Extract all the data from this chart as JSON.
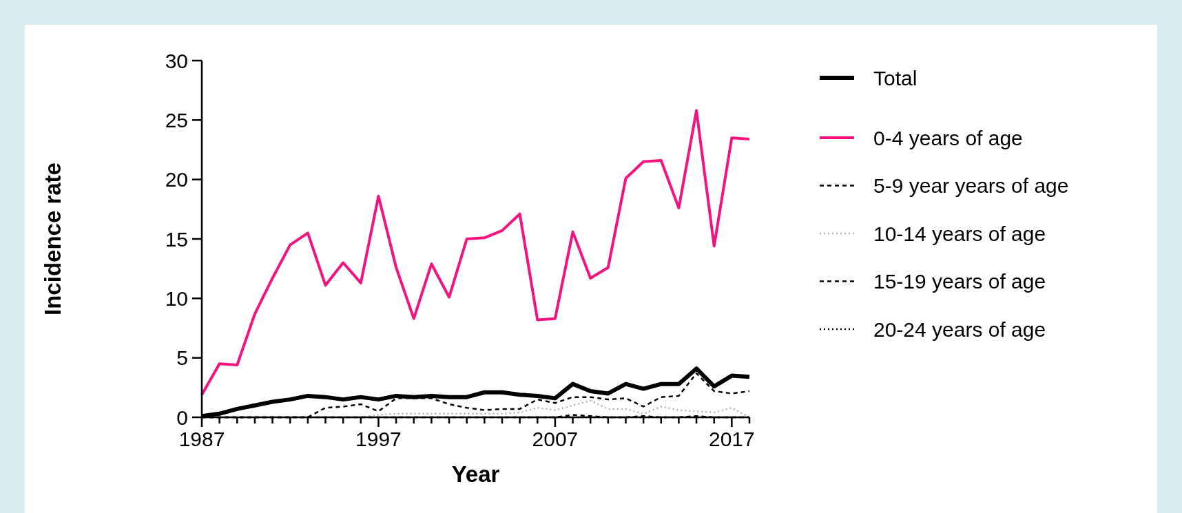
{
  "chart_data": {
    "type": "line",
    "xlabel": "Year",
    "ylabel": "Incidence rate",
    "x": [
      1987,
      1988,
      1989,
      1990,
      1991,
      1992,
      1993,
      1994,
      1995,
      1996,
      1997,
      1998,
      1999,
      2000,
      2001,
      2002,
      2003,
      2004,
      2005,
      2006,
      2007,
      2008,
      2009,
      2010,
      2011,
      2012,
      2013,
      2014,
      2015,
      2016,
      2017,
      2018
    ],
    "series": [
      {
        "name": "Total",
        "color": "#000000",
        "line_style": "solid",
        "values": [
          0.1,
          0.3,
          0.7,
          1.0,
          1.3,
          1.5,
          1.8,
          1.7,
          1.5,
          1.7,
          1.5,
          1.8,
          1.7,
          1.8,
          1.7,
          1.7,
          2.1,
          2.1,
          1.9,
          1.8,
          1.6,
          2.8,
          2.2,
          2.0,
          2.8,
          2.4,
          2.8,
          2.8,
          4.1,
          2.6,
          3.5,
          3.4
        ]
      },
      {
        "name": "0-4 years of age",
        "color": "#f5137f",
        "line_style": "solid",
        "values": [
          1.9,
          4.5,
          4.4,
          8.7,
          11.7,
          14.5,
          15.5,
          11.1,
          13.0,
          11.3,
          18.6,
          12.6,
          8.3,
          12.9,
          10.1,
          15.0,
          15.1,
          15.7,
          17.1,
          8.2,
          8.3,
          15.6,
          11.7,
          12.6,
          20.1,
          21.5,
          21.6,
          17.6,
          25.8,
          14.4,
          23.5,
          23.4
        ]
      },
      {
        "name": "5-9 year years of age",
        "color": "#000000",
        "line_style": "dashed",
        "values": [
          0,
          0,
          0,
          0,
          0,
          0,
          0,
          0.8,
          0.9,
          1.1,
          0.5,
          1.6,
          1.6,
          1.6,
          1.1,
          0.8,
          0.6,
          0.7,
          0.7,
          1.5,
          1.2,
          1.7,
          1.7,
          1.5,
          1.6,
          0.9,
          1.7,
          1.8,
          3.7,
          2.2,
          2.0,
          2.2
        ]
      },
      {
        "name": "10-14 years of age",
        "color": "#b0b0b0",
        "line_style": "dotted",
        "values": [
          null,
          null,
          null,
          null,
          null,
          null,
          null,
          null,
          null,
          0,
          0.2,
          0.3,
          0.3,
          0.3,
          0.3,
          0.3,
          0.3,
          0.3,
          0.4,
          0.8,
          0.6,
          1.0,
          1.4,
          0.7,
          0.7,
          0.3,
          0.9,
          0.6,
          0.5,
          0.4,
          0.8,
          0
        ]
      },
      {
        "name": "15-19 years of age",
        "color": "#000000",
        "line_style": "dashed",
        "values": [
          0,
          0,
          0,
          0,
          0,
          0,
          0,
          0,
          0,
          0,
          0,
          0,
          0,
          0,
          0,
          0,
          0,
          0,
          0,
          0,
          0,
          0.2,
          0.1,
          0,
          0,
          0.1,
          0,
          0,
          0.1,
          0,
          0,
          0
        ]
      },
      {
        "name": "20-24 years of age",
        "color": "#000000",
        "line_style": "dotted",
        "values": [
          null,
          null,
          null,
          null,
          null,
          null,
          null,
          null,
          null,
          null,
          null,
          null,
          null,
          null,
          null,
          null,
          null,
          null,
          0,
          0,
          0,
          0,
          0,
          0,
          0,
          0,
          0,
          0,
          0,
          0,
          0,
          0
        ]
      }
    ],
    "xlim": [
      1987,
      2018
    ],
    "ylim": [
      0,
      30
    ],
    "xticks": [
      1987,
      {
        "value": 1988,
        "label": null
      },
      {
        "value": 1989,
        "label": null
      },
      {
        "value": 1990,
        "label": null
      },
      {
        "value": 1991,
        "label": null
      },
      {
        "value": 1992,
        "label": null
      },
      {
        "value": 1993,
        "label": null
      },
      {
        "value": 1994,
        "label": null
      },
      {
        "value": 1995,
        "label": null
      },
      {
        "value": 1996,
        "label": null
      },
      1997,
      {
        "value": 1998,
        "label": null
      },
      {
        "value": 1999,
        "label": null
      },
      {
        "value": 2000,
        "label": null
      },
      {
        "value": 2001,
        "label": null
      },
      {
        "value": 2002,
        "label": null
      },
      {
        "value": 2003,
        "label": null
      },
      {
        "value": 2004,
        "label": null
      },
      {
        "value": 2005,
        "label": null
      },
      {
        "value": 2006,
        "label": null
      },
      2007,
      {
        "value": 2008,
        "label": null
      },
      {
        "value": 2009,
        "label": null
      },
      {
        "value": 2010,
        "label": null
      },
      {
        "value": 2011,
        "label": null
      },
      {
        "value": 2012,
        "label": null
      },
      {
        "value": 2013,
        "label": null
      },
      {
        "value": 2014,
        "label": null
      },
      {
        "value": 2015,
        "label": null
      },
      {
        "value": 2016,
        "label": null
      },
      2017,
      {
        "value": 2018,
        "label": null
      }
    ],
    "yticks": [
      0,
      5,
      10,
      15,
      20,
      25,
      30
    ],
    "grid": false,
    "legend": "right",
    "marker": "none"
  }
}
